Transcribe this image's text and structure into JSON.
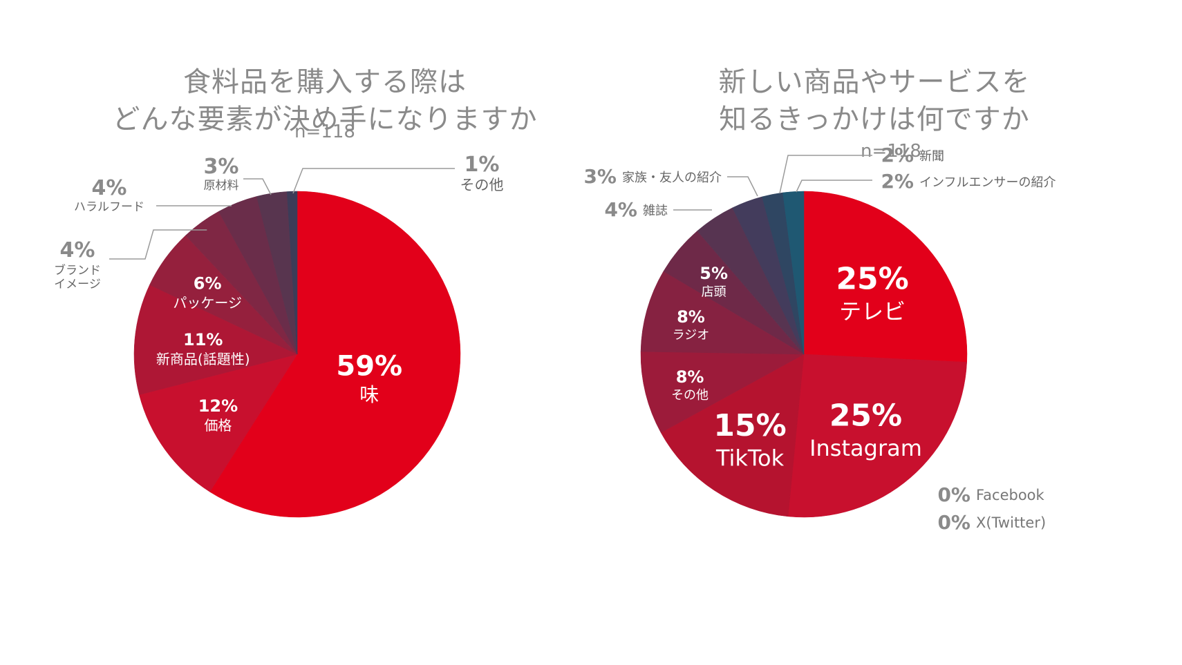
{
  "chart_data": [
    {
      "type": "pie",
      "title": [
        "食料品を購入する際は",
        "どんな要素が決め手になりますか"
      ],
      "subtitle": "n=118",
      "slices": [
        {
          "pct_text": "59%",
          "label": "味",
          "value": 59,
          "color": "#e2001a"
        },
        {
          "pct_text": "12%",
          "label": "価格",
          "value": 12,
          "color": "#c8102e"
        },
        {
          "pct_text": "11%",
          "label": "新商品(話題性)",
          "value": 11,
          "color": "#ae1735"
        },
        {
          "pct_text": "6%",
          "label": "パッケージ",
          "value": 6,
          "color": "#95203d"
        },
        {
          "pct_text": "4%",
          "label": "ブランド\nイメージ",
          "value": 4,
          "color": "#7f2744"
        },
        {
          "pct_text": "4%",
          "label": "ハラルフード",
          "value": 4,
          "color": "#6a2d4a"
        },
        {
          "pct_text": "3%",
          "label": "原材料",
          "value": 3,
          "color": "#58354f"
        },
        {
          "pct_text": "1%",
          "label": "その他",
          "value": 1,
          "color": "#3c3c58"
        }
      ]
    },
    {
      "type": "pie",
      "title": [
        "新しい商品やサービスを",
        "知るきっかけは何ですか"
      ],
      "subtitle": "n=118",
      "slices": [
        {
          "pct_text": "25%",
          "label": "テレビ",
          "value": 25,
          "color": "#e2001a"
        },
        {
          "pct_text": "25%",
          "label": "Instagram",
          "value": 25,
          "color": "#c8102e"
        },
        {
          "pct_text": "15%",
          "label": "TikTok",
          "value": 15,
          "color": "#b5132f"
        },
        {
          "pct_text": "8%",
          "label": "その他",
          "value": 8,
          "color": "#9c1b3a"
        },
        {
          "pct_text": "8%",
          "label": "ラジオ",
          "value": 8,
          "color": "#862241"
        },
        {
          "pct_text": "5%",
          "label": "店頭",
          "value": 5,
          "color": "#6e2948"
        },
        {
          "pct_text": "4%",
          "label": "雑誌",
          "value": 4,
          "color": "#573451"
        },
        {
          "pct_text": "3%",
          "label": "家族・友人の紹介",
          "value": 3,
          "color": "#433c5c"
        },
        {
          "pct_text": "2%",
          "label": "新聞",
          "value": 2,
          "color": "#2f4662"
        },
        {
          "pct_text": "2%",
          "label": "インフルエンサーの紹介",
          "value": 2,
          "color": "#1f5872"
        },
        {
          "pct_text": "0%",
          "label": "Facebook",
          "value": 0,
          "color": "#8a8a8a"
        },
        {
          "pct_text": "0%",
          "label": "X(Twitter)",
          "value": 0,
          "color": "#8a8a8a"
        }
      ]
    }
  ]
}
